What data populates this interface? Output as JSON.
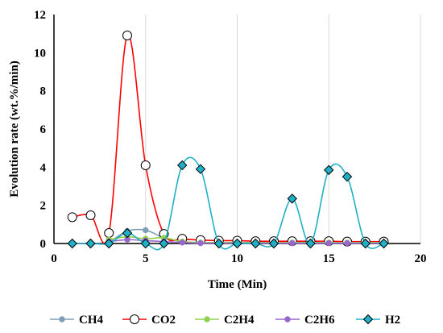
{
  "chart_data": {
    "type": "line",
    "xlabel": "Time (Min)",
    "ylabel": "Evolution rate (wt.%/min)",
    "xlim": [
      0,
      20
    ],
    "ylim": [
      0,
      12
    ],
    "xticks": [
      0,
      5,
      10,
      15,
      20
    ],
    "yticks": [
      0,
      2,
      4,
      6,
      8,
      10,
      12
    ],
    "grid": "vertical",
    "legend": "bottom",
    "series": [
      {
        "name": "CH4",
        "color": "#7f9fb8",
        "marker": "circle-filled",
        "points": [
          [
            3,
            0.05
          ],
          [
            4,
            0.65
          ],
          [
            5,
            0.7
          ],
          [
            6,
            0.3
          ],
          [
            7,
            0.1
          ],
          [
            8,
            0.05
          ],
          [
            9,
            0.05
          ],
          [
            10,
            0.05
          ],
          [
            11,
            0.05
          ],
          [
            12,
            0.05
          ],
          [
            13,
            0.05
          ],
          [
            14,
            0.05
          ],
          [
            15,
            0.05
          ],
          [
            16,
            0.05
          ],
          [
            17,
            0.05
          ],
          [
            18,
            0.05
          ]
        ]
      },
      {
        "name": "CO2",
        "color": "#ff0000",
        "marker": "circle-open",
        "points": [
          [
            1,
            1.38
          ],
          [
            2,
            1.48
          ],
          [
            3,
            0.55
          ],
          [
            4,
            10.9
          ],
          [
            5,
            4.1
          ],
          [
            6,
            0.5
          ],
          [
            7,
            0.25
          ],
          [
            8,
            0.18
          ],
          [
            9,
            0.15
          ],
          [
            10,
            0.15
          ],
          [
            11,
            0.12
          ],
          [
            12,
            0.12
          ],
          [
            13,
            0.12
          ],
          [
            14,
            0.12
          ],
          [
            15,
            0.12
          ],
          [
            16,
            0.1
          ],
          [
            17,
            0.1
          ],
          [
            18,
            0.1
          ]
        ]
      },
      {
        "name": "C2H4",
        "color": "#92d050",
        "marker": "circle-filled",
        "points": [
          [
            3,
            0.2
          ],
          [
            4,
            0.35
          ],
          [
            5,
            0.25
          ],
          [
            6,
            0.3
          ],
          [
            7,
            0.1
          ],
          [
            8,
            0.05
          ],
          [
            9,
            0.05
          ],
          [
            10,
            0.05
          ],
          [
            11,
            0.05
          ],
          [
            12,
            0.05
          ],
          [
            13,
            0.05
          ],
          [
            14,
            0.05
          ],
          [
            15,
            0.05
          ],
          [
            16,
            0.05
          ],
          [
            17,
            0.05
          ],
          [
            18,
            0.05
          ]
        ]
      },
      {
        "name": "C2H6",
        "color": "#9966cc",
        "marker": "circle-filled",
        "points": [
          [
            3,
            0.1
          ],
          [
            4,
            0.2
          ],
          [
            5,
            0.15
          ],
          [
            6,
            0.1
          ],
          [
            7,
            0.05
          ],
          [
            8,
            0.02
          ],
          [
            9,
            0.02
          ],
          [
            10,
            0.02
          ],
          [
            11,
            0.02
          ],
          [
            12,
            0.02
          ],
          [
            13,
            0.02
          ],
          [
            14,
            0.02
          ],
          [
            15,
            0.02
          ],
          [
            16,
            0.02
          ],
          [
            17,
            0.02
          ],
          [
            18,
            0.02
          ]
        ]
      },
      {
        "name": "H2",
        "color": "#1fb0c8",
        "marker": "diamond-filled",
        "points": [
          [
            1,
            0
          ],
          [
            2,
            0
          ],
          [
            3,
            0
          ],
          [
            4,
            0.55
          ],
          [
            5,
            0
          ],
          [
            6,
            0
          ],
          [
            7,
            4.1
          ],
          [
            8,
            3.9
          ],
          [
            9,
            0
          ],
          [
            10,
            0
          ],
          [
            11,
            0
          ],
          [
            12,
            0
          ],
          [
            13,
            2.35
          ],
          [
            14,
            0
          ],
          [
            15,
            3.85
          ],
          [
            16,
            3.5
          ],
          [
            17,
            0
          ],
          [
            18,
            0
          ]
        ]
      }
    ]
  }
}
